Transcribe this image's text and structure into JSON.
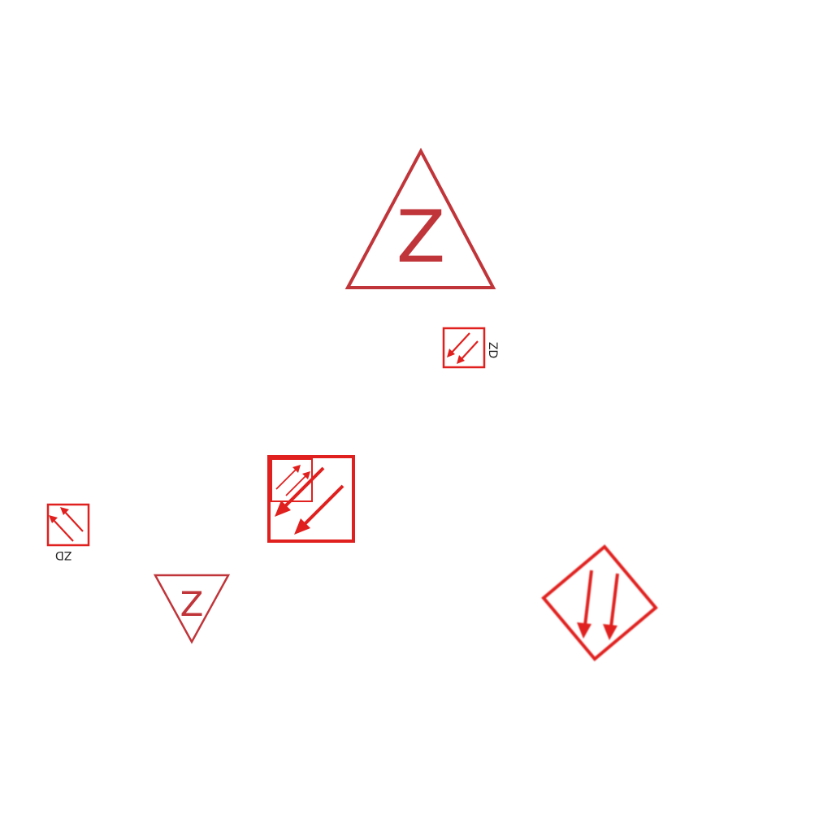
{
  "symbols": {
    "large_triangle": {
      "letter": "Z"
    },
    "small_triangle": {
      "letter": "Z"
    },
    "small_square_a": {
      "label": "ZD"
    },
    "small_square_b": {
      "label": "ZD"
    }
  },
  "colors": {
    "triangle_red": "#c0353a",
    "arrow_red": "#e0201e",
    "background": "#ffffff"
  }
}
